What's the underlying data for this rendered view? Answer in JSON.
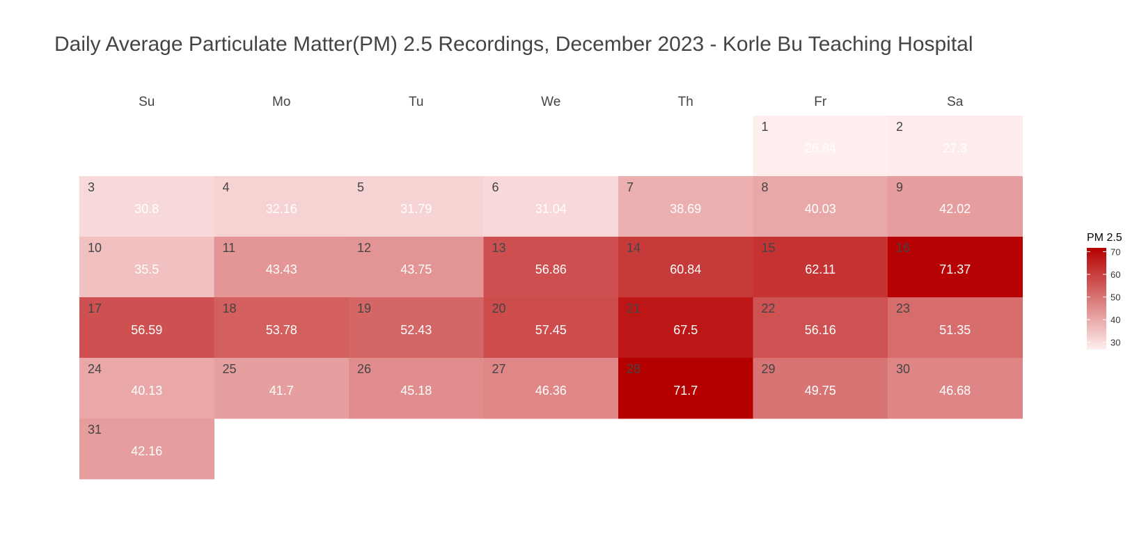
{
  "chart_data": {
    "type": "heatmap",
    "title": "Daily Average Particulate Matter(PM) 2.5 Recordings, December 2023 - Korle Bu Teaching Hospital",
    "weekdays": [
      "Su",
      "Mo",
      "Tu",
      "We",
      "Th",
      "Fr",
      "Sa"
    ],
    "first_weekday_index": 5,
    "days": [
      1,
      2,
      3,
      4,
      5,
      6,
      7,
      8,
      9,
      10,
      11,
      12,
      13,
      14,
      15,
      16,
      17,
      18,
      19,
      20,
      21,
      22,
      23,
      24,
      25,
      26,
      27,
      28,
      29,
      30,
      31
    ],
    "values": [
      26.84,
      27.3,
      30.8,
      32.16,
      31.79,
      31.04,
      38.69,
      40.03,
      42.02,
      35.5,
      43.43,
      43.75,
      56.86,
      60.84,
      62.11,
      71.37,
      56.59,
      53.78,
      52.43,
      57.45,
      67.5,
      56.16,
      51.35,
      40.13,
      41.7,
      45.18,
      46.36,
      71.7,
      49.75,
      46.68,
      42.16
    ],
    "value_labels": [
      "26.84",
      "27.3",
      "30.8",
      "32.16",
      "31.79",
      "31.04",
      "38.69",
      "40.03",
      "42.02",
      "35.5",
      "43.43",
      "43.75",
      "56.86",
      "60.84",
      "62.11",
      "71.37",
      "56.59",
      "53.78",
      "52.43",
      "57.45",
      "67.5",
      "56.16",
      "51.35",
      "40.13",
      "41.7",
      "45.18",
      "46.36",
      "71.7",
      "49.75",
      "46.68",
      "42.16"
    ],
    "legend": {
      "title": "PM 2.5",
      "ticks": [
        "70",
        "60",
        "50",
        "40",
        "30"
      ],
      "tick_values": [
        70,
        60,
        50,
        40,
        30
      ],
      "range": [
        26.84,
        71.7
      ],
      "color_low": "#ffeeee",
      "color_high": "#b50000",
      "placement": "right"
    },
    "grid": false
  }
}
